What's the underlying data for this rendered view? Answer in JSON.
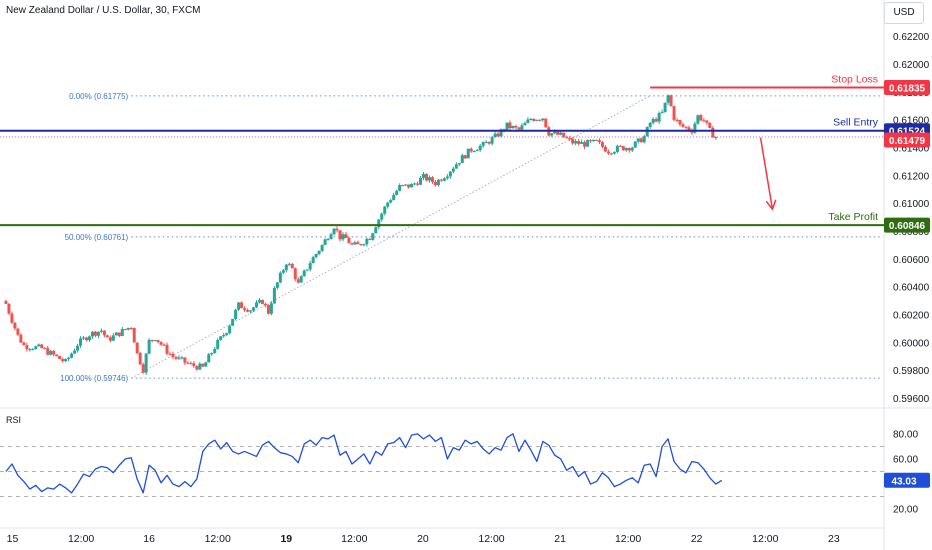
{
  "chart_data": {
    "type": "candlestick",
    "title": "New Zealand Dollar / U.S. Dollar, 30, FXCM",
    "currency": "USD",
    "ylim": [
      0.5956,
      0.6232
    ],
    "price_ticks": [
      "0.62200",
      "0.62000",
      "0.61800",
      "0.61600",
      "0.61400",
      "0.61200",
      "0.61000",
      "0.60800",
      "0.60600",
      "0.60400",
      "0.60200",
      "0.60000",
      "0.59800",
      "0.59600"
    ],
    "x_labels": [
      {
        "label": "15",
        "t": 1.1
      },
      {
        "label": "12:00",
        "t": 12.6
      },
      {
        "label": "16",
        "t": 24.0
      },
      {
        "label": "12:00",
        "t": 35.5
      },
      {
        "label": "19",
        "t": 47.0
      },
      {
        "label": "12:00",
        "t": 58.4
      },
      {
        "label": "20",
        "t": 69.9
      },
      {
        "label": "12:00",
        "t": 81.4
      },
      {
        "label": "21",
        "t": 92.9
      },
      {
        "label": "12:00",
        "t": 104.3
      },
      {
        "label": "22",
        "t": 115.8
      },
      {
        "label": "12:00",
        "t": 127.3
      },
      {
        "label": "23",
        "t": 138.8
      }
    ],
    "t_range": [
      -1.0,
      147.2
    ],
    "bull_color": "#26a69a",
    "bear_color": "#ef5350",
    "close_path": [
      [
        0,
        0.6028
      ],
      [
        2,
        0.6005
      ],
      [
        3,
        0.5998
      ],
      [
        6,
        0.5996
      ],
      [
        8,
        0.5991
      ],
      [
        10,
        0.5986
      ],
      [
        12,
        0.5999
      ],
      [
        14,
        0.6006
      ],
      [
        16,
        0.6009
      ],
      [
        17,
        0.6002
      ],
      [
        19,
        0.6007
      ],
      [
        21,
        0.6012
      ],
      [
        22,
        0.5992
      ],
      [
        23,
        0.5981
      ],
      [
        24,
        0.6001
      ],
      [
        25,
        0.6004
      ],
      [
        27,
        0.5994
      ],
      [
        28,
        0.599
      ],
      [
        31,
        0.5984
      ],
      [
        33,
        0.5982
      ],
      [
        35,
        0.5997
      ],
      [
        37,
        0.6009
      ],
      [
        39,
        0.6027
      ],
      [
        41,
        0.6024
      ],
      [
        43,
        0.603
      ],
      [
        44,
        0.6022
      ],
      [
        45,
        0.6038
      ],
      [
        47,
        0.6058
      ],
      [
        48,
        0.6053
      ],
      [
        49,
        0.6042
      ],
      [
        51,
        0.6058
      ],
      [
        53,
        0.607
      ],
      [
        55,
        0.6084
      ],
      [
        56,
        0.6076
      ],
      [
        57,
        0.6075
      ],
      [
        58,
        0.607
      ],
      [
        59,
        0.607
      ],
      [
        61,
        0.6076
      ],
      [
        62,
        0.6085
      ],
      [
        64,
        0.6101
      ],
      [
        66,
        0.6112
      ],
      [
        68,
        0.6113
      ],
      [
        70,
        0.6119
      ],
      [
        72,
        0.6115
      ],
      [
        74,
        0.6122
      ],
      [
        76,
        0.6131
      ],
      [
        78,
        0.6139
      ],
      [
        80,
        0.6142
      ],
      [
        82,
        0.6148
      ],
      [
        84,
        0.6156
      ],
      [
        86,
        0.6153
      ],
      [
        88,
        0.6161
      ],
      [
        90,
        0.6162
      ],
      [
        91,
        0.6151
      ],
      [
        93,
        0.6149
      ],
      [
        95,
        0.6144
      ],
      [
        97,
        0.6143
      ],
      [
        99,
        0.6144
      ],
      [
        101,
        0.6138
      ],
      [
        103,
        0.614
      ],
      [
        105,
        0.6141
      ],
      [
        107,
        0.6148
      ],
      [
        108,
        0.6158
      ],
      [
        109,
        0.6161
      ],
      [
        110,
        0.6165
      ],
      [
        111,
        0.61775
      ],
      [
        112,
        0.6162
      ],
      [
        113,
        0.6156
      ],
      [
        115,
        0.6153
      ],
      [
        116,
        0.6163
      ],
      [
        117,
        0.616
      ],
      [
        118,
        0.6152
      ],
      [
        119,
        0.61479
      ]
    ],
    "levels": [
      {
        "name": "Stop Loss",
        "value": 0.61835,
        "label": "0.61835",
        "color": "#f23645",
        "t_from": 108.0
      },
      {
        "name": "Sell Entry",
        "value": 0.61524,
        "label": "0.61524",
        "color": "#1e2ba3",
        "t_from": -1.0
      },
      {
        "name": "Take Profit",
        "value": 0.60846,
        "label": "0.60846",
        "color": "#2e6b11",
        "t_from": -1.0
      }
    ],
    "current_price": {
      "value": 0.61479,
      "label": "0.61479",
      "color": "#f23645"
    },
    "fib_levels": [
      {
        "label": "0.00% (0.61775)",
        "value": 0.61775
      },
      {
        "label": "50.00% (0.60761)",
        "value": 0.60761
      },
      {
        "label": "100.00% (0.59746)",
        "value": 0.59746
      }
    ],
    "fib_trendline": [
      [
        21.0,
        0.59746
      ],
      [
        108.0,
        0.61775
      ]
    ],
    "arrow": {
      "from": [
        126.5,
        0.61475
      ],
      "to": [
        128.5,
        0.6096
      ],
      "color": "#f23645"
    },
    "rsi": {
      "label": "RSI",
      "ylim": [
        13.0,
        95.0
      ],
      "ticks": [
        "80.00",
        "60.00",
        "40.00",
        "20.00"
      ],
      "bands": [
        70,
        50,
        30
      ],
      "current": "43.03",
      "color": "#1e4fd6",
      "path": [
        [
          0,
          50
        ],
        [
          1,
          56
        ],
        [
          2,
          47
        ],
        [
          3,
          42
        ],
        [
          4,
          36
        ],
        [
          5,
          39
        ],
        [
          6,
          34
        ],
        [
          7,
          37
        ],
        [
          8,
          36
        ],
        [
          9,
          40
        ],
        [
          10,
          37
        ],
        [
          11,
          33
        ],
        [
          12,
          40
        ],
        [
          13,
          48
        ],
        [
          14,
          46
        ],
        [
          15,
          52
        ],
        [
          16,
          54
        ],
        [
          17,
          53
        ],
        [
          18,
          49
        ],
        [
          19,
          55
        ],
        [
          20,
          60
        ],
        [
          21,
          61
        ],
        [
          22,
          44
        ],
        [
          23,
          33
        ],
        [
          24,
          55
        ],
        [
          25,
          51
        ],
        [
          26,
          41
        ],
        [
          27,
          47
        ],
        [
          28,
          40
        ],
        [
          29,
          38
        ],
        [
          30,
          42
        ],
        [
          31,
          38
        ],
        [
          32,
          44
        ],
        [
          33,
          66
        ],
        [
          34,
          72
        ],
        [
          35,
          75
        ],
        [
          36,
          68
        ],
        [
          37,
          73
        ],
        [
          38,
          66
        ],
        [
          39,
          64
        ],
        [
          40,
          66
        ],
        [
          41,
          64
        ],
        [
          42,
          62
        ],
        [
          43,
          71
        ],
        [
          44,
          74
        ],
        [
          45,
          69
        ],
        [
          46,
          65
        ],
        [
          47,
          64
        ],
        [
          48,
          62
        ],
        [
          49,
          57
        ],
        [
          50,
          72
        ],
        [
          51,
          75
        ],
        [
          52,
          71
        ],
        [
          53,
          77
        ],
        [
          54,
          76
        ],
        [
          55,
          79
        ],
        [
          56,
          63
        ],
        [
          57,
          66
        ],
        [
          58,
          56
        ],
        [
          59,
          60
        ],
        [
          60,
          64
        ],
        [
          61,
          56
        ],
        [
          62,
          66
        ],
        [
          63,
          63
        ],
        [
          64,
          72
        ],
        [
          65,
          73
        ],
        [
          66,
          77
        ],
        [
          67,
          69
        ],
        [
          68,
          79
        ],
        [
          69,
          80
        ],
        [
          70,
          76
        ],
        [
          71,
          79
        ],
        [
          72,
          74
        ],
        [
          73,
          77
        ],
        [
          74,
          60
        ],
        [
          75,
          69
        ],
        [
          76,
          67
        ],
        [
          77,
          75
        ],
        [
          78,
          72
        ],
        [
          79,
          74
        ],
        [
          80,
          68
        ],
        [
          81,
          64
        ],
        [
          82,
          69
        ],
        [
          83,
          67
        ],
        [
          84,
          77
        ],
        [
          85,
          80
        ],
        [
          86,
          66
        ],
        [
          87,
          75
        ],
        [
          88,
          67
        ],
        [
          89,
          58
        ],
        [
          90,
          74
        ],
        [
          91,
          71
        ],
        [
          92,
          63
        ],
        [
          93,
          60
        ],
        [
          94,
          51
        ],
        [
          95,
          54
        ],
        [
          96,
          46
        ],
        [
          97,
          50
        ],
        [
          98,
          40
        ],
        [
          99,
          42
        ],
        [
          100,
          49
        ],
        [
          101,
          45
        ],
        [
          102,
          38
        ],
        [
          103,
          40
        ],
        [
          104,
          43
        ],
        [
          105,
          45
        ],
        [
          106,
          41
        ],
        [
          107,
          55
        ],
        [
          108,
          56
        ],
        [
          109,
          46
        ],
        [
          110,
          70
        ],
        [
          111,
          76
        ],
        [
          112,
          58
        ],
        [
          113,
          52
        ],
        [
          114,
          49
        ],
        [
          115,
          58
        ],
        [
          116,
          57
        ],
        [
          117,
          52
        ],
        [
          118,
          45
        ],
        [
          119,
          40
        ],
        [
          120,
          43
        ]
      ]
    }
  }
}
